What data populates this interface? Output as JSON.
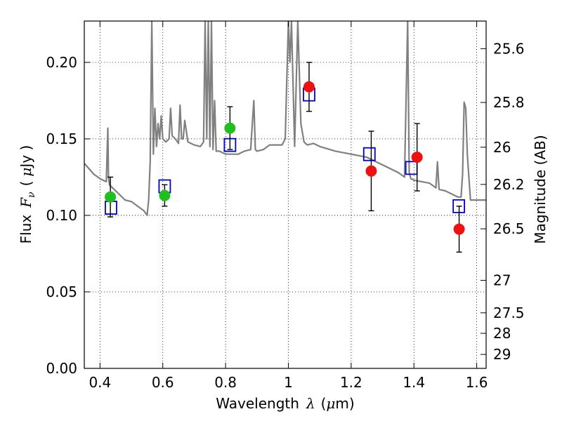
{
  "chart_data": {
    "type": "scatter",
    "xlabel": "Wavelength",
    "xlabel_symbol": "λ",
    "xlabel_unit_open": "(",
    "xlabel_unit_mu": "μ",
    "xlabel_unit_rest": "m)",
    "ylabel": "Flux",
    "ylabel_symbol": "F",
    "ylabel_subscript": "ν",
    "ylabel_unit_open": "(",
    "ylabel_unit_mu": "μ",
    "ylabel_unit_rest": "Jy )",
    "y2label": "Magnitude (AB)",
    "xlim": [
      0.35,
      1.63
    ],
    "ylim": [
      0.0,
      0.227
    ],
    "grid": true,
    "x_ticks": [
      {
        "value": 0.4,
        "label": "0.4"
      },
      {
        "value": 0.6,
        "label": "0.6"
      },
      {
        "value": 0.8,
        "label": "0.8"
      },
      {
        "value": 1.0,
        "label": "1"
      },
      {
        "value": 1.2,
        "label": "1.2"
      },
      {
        "value": 1.4,
        "label": "1.4"
      },
      {
        "value": 1.6,
        "label": "1.6"
      }
    ],
    "y_ticks": [
      {
        "value": 0.0,
        "label": "0.00"
      },
      {
        "value": 0.05,
        "label": "0.05"
      },
      {
        "value": 0.1,
        "label": "0.10"
      },
      {
        "value": 0.15,
        "label": "0.15"
      },
      {
        "value": 0.2,
        "label": "0.20"
      }
    ],
    "mag_ticks": [
      {
        "value": 25.6,
        "label": "25.6"
      },
      {
        "value": 25.8,
        "label": "25.8"
      },
      {
        "value": 26.0,
        "label": "26"
      },
      {
        "value": 26.2,
        "label": "26.2"
      },
      {
        "value": 26.5,
        "label": "26.5"
      },
      {
        "value": 27.0,
        "label": "27"
      },
      {
        "value": 27.5,
        "label": "27.5"
      },
      {
        "value": 28.0,
        "label": "28"
      },
      {
        "value": 29.0,
        "label": "29"
      }
    ],
    "series": [
      {
        "name": "green_measurements",
        "kind": "points",
        "color": "#1fbf1f",
        "points": [
          {
            "x": 0.433,
            "y": 0.112,
            "err": 0.013
          },
          {
            "x": 0.606,
            "y": 0.113,
            "err": 0.007
          },
          {
            "x": 0.814,
            "y": 0.157,
            "err": 0.014
          }
        ]
      },
      {
        "name": "red_measurements",
        "kind": "points",
        "color": "#ee1111",
        "points": [
          {
            "x": 1.066,
            "y": 0.184,
            "err": 0.016
          },
          {
            "x": 1.264,
            "y": 0.129,
            "err": 0.026
          },
          {
            "x": 1.41,
            "y": 0.138,
            "err": 0.022
          },
          {
            "x": 1.544,
            "y": 0.091,
            "err": 0.015
          }
        ]
      },
      {
        "name": "model_bandpass",
        "kind": "squares",
        "color": "#0000cc",
        "points": [
          {
            "x": 0.435,
            "y": 0.105
          },
          {
            "x": 0.606,
            "y": 0.119
          },
          {
            "x": 0.814,
            "y": 0.146
          },
          {
            "x": 1.066,
            "y": 0.179
          },
          {
            "x": 1.258,
            "y": 0.14
          },
          {
            "x": 1.392,
            "y": 0.131
          },
          {
            "x": 1.543,
            "y": 0.106
          }
        ]
      },
      {
        "name": "model_spectrum",
        "kind": "line",
        "color": "#808080",
        "x": [
          0.35,
          0.38,
          0.4,
          0.42,
          0.425,
          0.427,
          0.43,
          0.44,
          0.46,
          0.48,
          0.5,
          0.52,
          0.54,
          0.55,
          0.555,
          0.56,
          0.565,
          0.57,
          0.575,
          0.58,
          0.585,
          0.59,
          0.595,
          0.6,
          0.61,
          0.62,
          0.625,
          0.63,
          0.64,
          0.65,
          0.655,
          0.66,
          0.665,
          0.67,
          0.68,
          0.7,
          0.72,
          0.73,
          0.735,
          0.74,
          0.745,
          0.75,
          0.755,
          0.76,
          0.765,
          0.77,
          0.78,
          0.8,
          0.82,
          0.84,
          0.86,
          0.88,
          0.89,
          0.895,
          0.9,
          0.92,
          0.94,
          0.96,
          0.98,
          0.99,
          1.0,
          1.005,
          1.01,
          1.02,
          1.03,
          1.04,
          1.05,
          1.06,
          1.08,
          1.1,
          1.15,
          1.2,
          1.25,
          1.3,
          1.35,
          1.37,
          1.375,
          1.38,
          1.385,
          1.39,
          1.4,
          1.45,
          1.47,
          1.475,
          1.48,
          1.5,
          1.52,
          1.54,
          1.55,
          1.555,
          1.56,
          1.565,
          1.57,
          1.58,
          1.6,
          1.63
        ],
        "y": [
          0.134,
          0.127,
          0.124,
          0.122,
          0.157,
          0.125,
          0.12,
          0.118,
          0.114,
          0.11,
          0.109,
          0.106,
          0.103,
          0.1,
          0.11,
          0.135,
          0.227,
          0.14,
          0.17,
          0.145,
          0.16,
          0.15,
          0.165,
          0.15,
          0.148,
          0.15,
          0.17,
          0.152,
          0.15,
          0.147,
          0.172,
          0.15,
          0.15,
          0.162,
          0.148,
          0.146,
          0.145,
          0.148,
          0.227,
          0.15,
          0.227,
          0.145,
          0.227,
          0.143,
          0.175,
          0.142,
          0.142,
          0.14,
          0.14,
          0.14,
          0.142,
          0.143,
          0.175,
          0.143,
          0.142,
          0.143,
          0.146,
          0.146,
          0.146,
          0.15,
          0.227,
          0.2,
          0.227,
          0.145,
          0.227,
          0.16,
          0.148,
          0.146,
          0.147,
          0.145,
          0.142,
          0.14,
          0.138,
          0.133,
          0.128,
          0.125,
          0.175,
          0.227,
          0.128,
          0.124,
          0.123,
          0.121,
          0.118,
          0.135,
          0.117,
          0.116,
          0.114,
          0.112,
          0.112,
          0.127,
          0.174,
          0.17,
          0.14,
          0.11,
          0.11,
          0.11
        ]
      }
    ]
  }
}
